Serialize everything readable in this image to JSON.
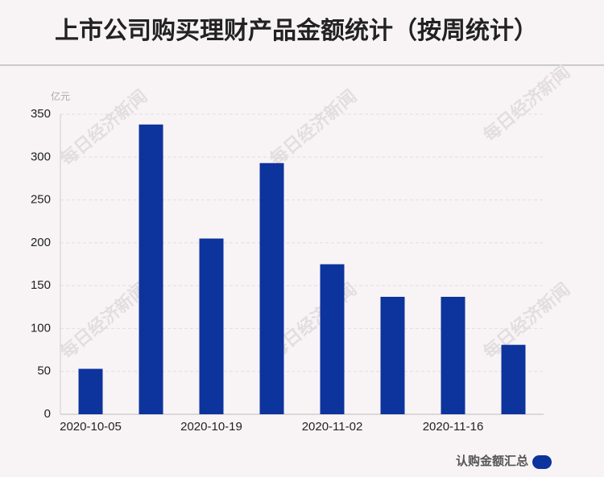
{
  "chart_data": {
    "type": "bar",
    "title": "上市公司购买理财产品金额统计（按周统计）",
    "y_unit": "亿元",
    "categories": [
      "2020-10-05",
      null,
      "2020-10-19",
      null,
      "2020-11-02",
      null,
      "2020-11-16",
      null
    ],
    "series": [
      {
        "name": "认购金额汇总",
        "color": "#0d339c",
        "values": [
          53,
          338,
          205,
          293,
          175,
          137,
          137,
          81
        ]
      }
    ],
    "ylim": [
      0,
      350
    ],
    "yticks": [
      0,
      50,
      100,
      150,
      200,
      250,
      300,
      350
    ],
    "grid": true,
    "legend": "bottom-right",
    "watermark": "每日经济新闻"
  }
}
